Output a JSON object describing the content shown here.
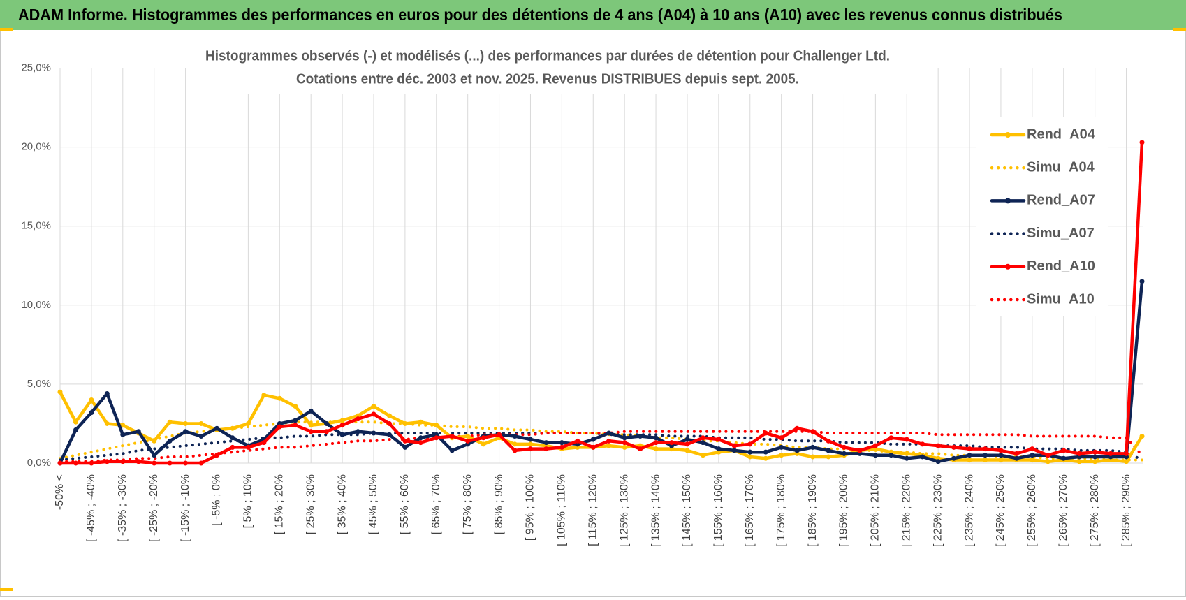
{
  "header": {
    "title": "ADAM Informe. Histogrammes des performances en euros pour des détentions de 4 ans (A04) à 10 ans (A10) avec les revenus connus distribués"
  },
  "chart_data": {
    "type": "line",
    "title": "Histogrammes observés (-) et modélisés (...) des performances par durées de détention pour Challenger Ltd.",
    "subtitle": "Cotations entre déc. 2003 et nov. 2025. Revenus DISTRIBUES depuis sept. 2005.",
    "categories": [
      "-50% <",
      null,
      "[ -45% ; -40%",
      null,
      "[ -35% ; -30%",
      null,
      "[ -25% ; -20%",
      null,
      "[ -15% ; -10%",
      null,
      "[ -5% ; 0%",
      null,
      "[ 5% ; 10%",
      null,
      "[ 15% ; 20%",
      null,
      "[ 25% ; 30%",
      null,
      "[ 35% ; 40%",
      null,
      "[ 45% ; 50%",
      null,
      "[ 55% ; 60%",
      null,
      "[ 65% ; 70%",
      null,
      "[ 75% ; 80%",
      null,
      "[ 85% ; 90%",
      null,
      "[ 95% ; 100%",
      null,
      "[ 105% ; 110%",
      null,
      "[ 115% ; 120%",
      null,
      "[ 125% ; 130%",
      null,
      "[ 135% ; 140%",
      null,
      "[ 145% ; 150%",
      null,
      "[ 155% ; 160%",
      null,
      "[ 165% ; 170%",
      null,
      "[ 175% ; 180%",
      null,
      "[ 185% ; 190%",
      null,
      "[ 195% ; 200%",
      null,
      "[ 205% ; 210%",
      null,
      "[ 215% ; 220%",
      null,
      "[ 225% ; 230%",
      null,
      "[ 235% ; 240%",
      null,
      "[ 245% ; 250%",
      null,
      "[ 255% ; 260%",
      null,
      "[ 265% ; 270%",
      null,
      "[ 275% ; 280%",
      null,
      "[ 285% ; 290%",
      null
    ],
    "series": [
      {
        "name": "Rend_A04",
        "color": "#ffc000",
        "line": "solid",
        "markers": true,
        "values": [
          4.5,
          2.6,
          4.0,
          2.5,
          2.4,
          1.9,
          1.4,
          2.6,
          2.5,
          2.5,
          2.1,
          2.2,
          2.5,
          4.3,
          4.1,
          3.6,
          2.4,
          2.5,
          2.7,
          3.0,
          3.6,
          3.0,
          2.5,
          2.6,
          2.4,
          1.6,
          1.7,
          1.2,
          1.6,
          1.2,
          1.2,
          1.1,
          0.9,
          1.0,
          1.0,
          1.1,
          1.0,
          1.1,
          0.9,
          0.9,
          0.8,
          0.5,
          0.7,
          0.8,
          0.4,
          0.3,
          0.5,
          0.6,
          0.4,
          0.4,
          0.5,
          0.8,
          0.9,
          0.7,
          0.6,
          0.5,
          0.3,
          0.2,
          0.2,
          0.2,
          0.2,
          0.2,
          0.2,
          0.1,
          0.2,
          0.1,
          0.1,
          0.2,
          0.1,
          1.7
        ]
      },
      {
        "name": "Simu_A04",
        "color": "#ffc000",
        "line": "dotted",
        "markers": false,
        "values": [
          0.3,
          0.5,
          0.7,
          0.9,
          1.1,
          1.3,
          1.5,
          1.7,
          1.9,
          2.0,
          2.1,
          2.2,
          2.3,
          2.4,
          2.5,
          2.6,
          2.6,
          2.6,
          2.6,
          2.6,
          2.6,
          2.5,
          2.5,
          2.4,
          2.4,
          2.3,
          2.3,
          2.2,
          2.2,
          2.1,
          2.1,
          2.0,
          2.0,
          1.9,
          1.9,
          1.8,
          1.8,
          1.7,
          1.6,
          1.6,
          1.5,
          1.4,
          1.4,
          1.3,
          1.2,
          1.2,
          1.1,
          1.0,
          1.0,
          0.9,
          0.9,
          0.8,
          0.8,
          0.7,
          0.7,
          0.6,
          0.6,
          0.5,
          0.5,
          0.5,
          0.4,
          0.4,
          0.4,
          0.3,
          0.3,
          0.3,
          0.3,
          0.2,
          0.2,
          0.2
        ]
      },
      {
        "name": "Rend_A07",
        "color": "#0e2455",
        "line": "solid",
        "markers": true,
        "values": [
          0,
          2.1,
          3.2,
          4.4,
          1.8,
          2.0,
          0.5,
          1.4,
          2.0,
          1.7,
          2.2,
          1.6,
          1.1,
          1.5,
          2.5,
          2.7,
          3.3,
          2.5,
          1.8,
          2.0,
          1.9,
          1.8,
          1.0,
          1.6,
          1.8,
          0.8,
          1.2,
          1.7,
          1.8,
          1.7,
          1.5,
          1.3,
          1.3,
          1.2,
          1.5,
          1.9,
          1.6,
          1.7,
          1.6,
          1.1,
          1.5,
          1.3,
          0.9,
          0.8,
          0.7,
          0.7,
          1.0,
          0.8,
          1.0,
          0.8,
          0.6,
          0.6,
          0.5,
          0.5,
          0.3,
          0.4,
          0.1,
          0.3,
          0.5,
          0.5,
          0.5,
          0.3,
          0.5,
          0.5,
          0.3,
          0.4,
          0.4,
          0.4,
          0.4,
          11.5
        ]
      },
      {
        "name": "Simu_A07",
        "color": "#0e2455",
        "line": "dotted",
        "markers": false,
        "values": [
          0.2,
          0.3,
          0.4,
          0.5,
          0.6,
          0.8,
          0.9,
          1.0,
          1.1,
          1.2,
          1.3,
          1.4,
          1.5,
          1.6,
          1.6,
          1.7,
          1.7,
          1.8,
          1.8,
          1.8,
          1.9,
          1.9,
          1.9,
          1.9,
          1.9,
          1.9,
          1.9,
          1.9,
          1.9,
          1.9,
          1.9,
          1.9,
          1.9,
          1.9,
          1.9,
          1.8,
          1.8,
          1.8,
          1.8,
          1.7,
          1.7,
          1.7,
          1.6,
          1.6,
          1.6,
          1.5,
          1.5,
          1.4,
          1.4,
          1.4,
          1.3,
          1.3,
          1.3,
          1.2,
          1.2,
          1.2,
          1.1,
          1.1,
          1.1,
          1.0,
          1.0,
          1.0,
          0.9,
          0.9,
          0.9,
          0.8,
          0.8,
          0.8,
          0.7,
          0.2
        ]
      },
      {
        "name": "Rend_A10",
        "color": "#ff0000",
        "line": "solid",
        "markers": true,
        "values": [
          0,
          0,
          0,
          0.1,
          0.1,
          0.1,
          0,
          0,
          0,
          0,
          0.5,
          1.0,
          1.0,
          1.3,
          2.3,
          2.4,
          2.0,
          2.0,
          2.4,
          2.8,
          3.1,
          2.5,
          1.4,
          1.3,
          1.6,
          1.7,
          1.4,
          1.6,
          1.8,
          0.8,
          0.9,
          0.9,
          1.0,
          1.4,
          1.0,
          1.4,
          1.3,
          0.9,
          1.3,
          1.3,
          1.2,
          1.6,
          1.5,
          1.1,
          1.2,
          1.9,
          1.6,
          2.2,
          2.0,
          1.4,
          1.0,
          0.8,
          1.1,
          1.6,
          1.5,
          1.2,
          1.1,
          1.0,
          0.9,
          0.9,
          0.8,
          0.6,
          0.9,
          0.5,
          0.8,
          0.6,
          0.7,
          0.6,
          0.6,
          20.3
        ]
      },
      {
        "name": "Simu_A10",
        "color": "#ff0000",
        "line": "dotted",
        "markers": false,
        "values": [
          0.1,
          0.1,
          0.1,
          0.2,
          0.2,
          0.3,
          0.3,
          0.4,
          0.4,
          0.5,
          0.6,
          0.7,
          0.8,
          0.9,
          1.0,
          1.0,
          1.1,
          1.2,
          1.3,
          1.4,
          1.4,
          1.5,
          1.5,
          1.6,
          1.6,
          1.7,
          1.7,
          1.8,
          1.8,
          1.8,
          1.8,
          1.9,
          1.9,
          1.9,
          1.9,
          1.9,
          2.0,
          2.0,
          2.0,
          2.0,
          2.0,
          2.0,
          2.0,
          2.0,
          2.0,
          2.0,
          2.0,
          2.0,
          2.0,
          1.9,
          1.9,
          1.9,
          1.9,
          1.9,
          1.9,
          1.9,
          1.8,
          1.8,
          1.8,
          1.8,
          1.8,
          1.8,
          1.7,
          1.7,
          1.7,
          1.7,
          1.7,
          1.6,
          1.6,
          0.5
        ]
      }
    ],
    "ylim": [
      0,
      25
    ],
    "yticks": [
      {
        "value": 0,
        "label": "0,0%"
      },
      {
        "value": 5,
        "label": "5,0%"
      },
      {
        "value": 10,
        "label": "10,0%"
      },
      {
        "value": 15,
        "label": "15,0%"
      },
      {
        "value": 20,
        "label": "20,0%"
      },
      {
        "value": 25,
        "label": "25,0%"
      }
    ],
    "grid": true,
    "legend": "right"
  }
}
